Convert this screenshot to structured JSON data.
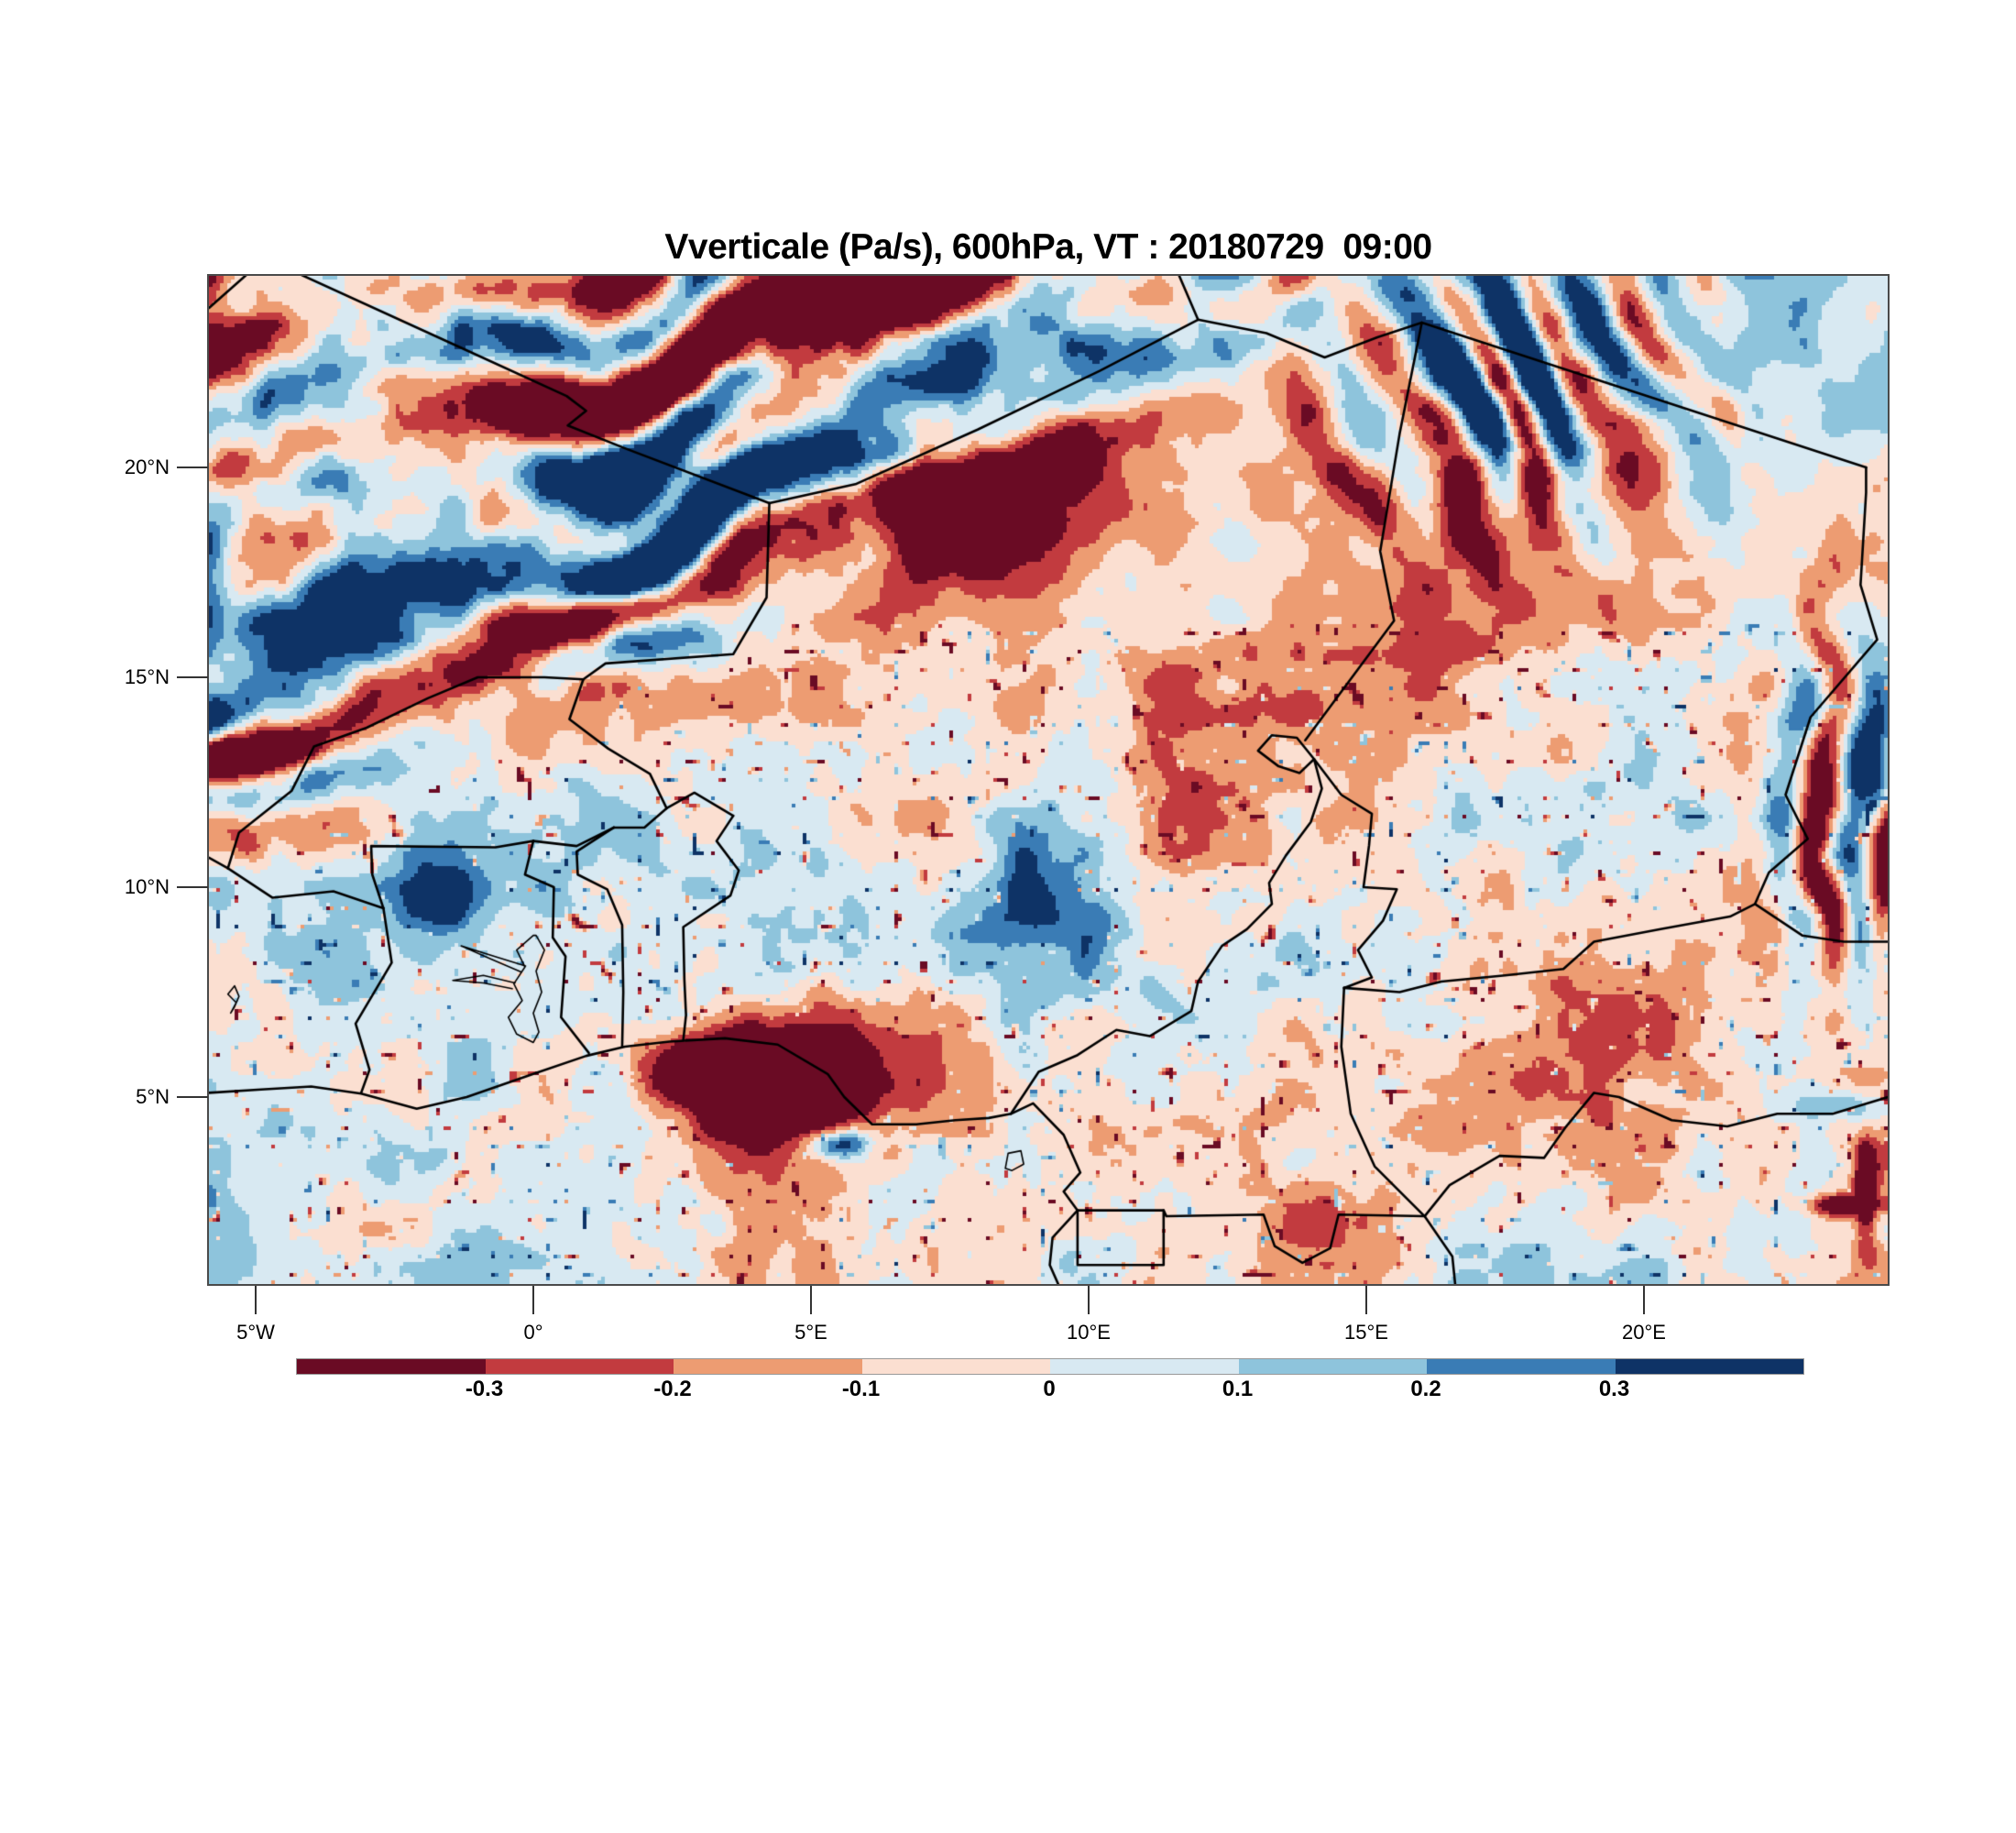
{
  "chart_data": {
    "type": "heatmap",
    "title": "Vverticale (Pa/s), 600hPa, VT : 20180729  09:00",
    "variable": "Vverticale",
    "units": "Pa/s",
    "pressure_level": "600hPa",
    "valid_time": "20180729 09:00",
    "x_axis": {
      "tick_labels": [
        "5°W",
        "0°",
        "5°E",
        "10°E",
        "15°E",
        "20°E"
      ],
      "tick_values_deg_east": [
        -5,
        0,
        5,
        10,
        15,
        20
      ]
    },
    "y_axis": {
      "tick_labels": [
        "20°N",
        "15°N",
        "10°N",
        "5°N"
      ],
      "tick_values_deg_north": [
        20,
        15,
        10,
        5
      ]
    },
    "map_extent": {
      "lon_min": -5.8,
      "lon_max": 24.4,
      "lat_min": 0.6,
      "lat_max": 24.6
    },
    "colorbar": {
      "orientation": "horizontal",
      "tick_labels": [
        "-0.3",
        "-0.2",
        "-0.1",
        "0",
        "0.1",
        "0.2",
        "0.3"
      ],
      "levels": [
        -0.3,
        -0.2,
        -0.1,
        0,
        0.1,
        0.2,
        0.3
      ],
      "colors": [
        "#6a0b24",
        "#c23b3f",
        "#ed9c72",
        "#fbdfd1",
        "#d8e9f2",
        "#8ec4dc",
        "#3a7cb5",
        "#0e3366"
      ]
    },
    "grid": false,
    "legend_position": "bottom"
  },
  "colors": {
    "country_border": "#000000",
    "map_frame": "#4a4a4a",
    "axis_tick": "#333333",
    "colorbar_outline": "#999999",
    "text": "#000000",
    "background": "#ffffff"
  }
}
